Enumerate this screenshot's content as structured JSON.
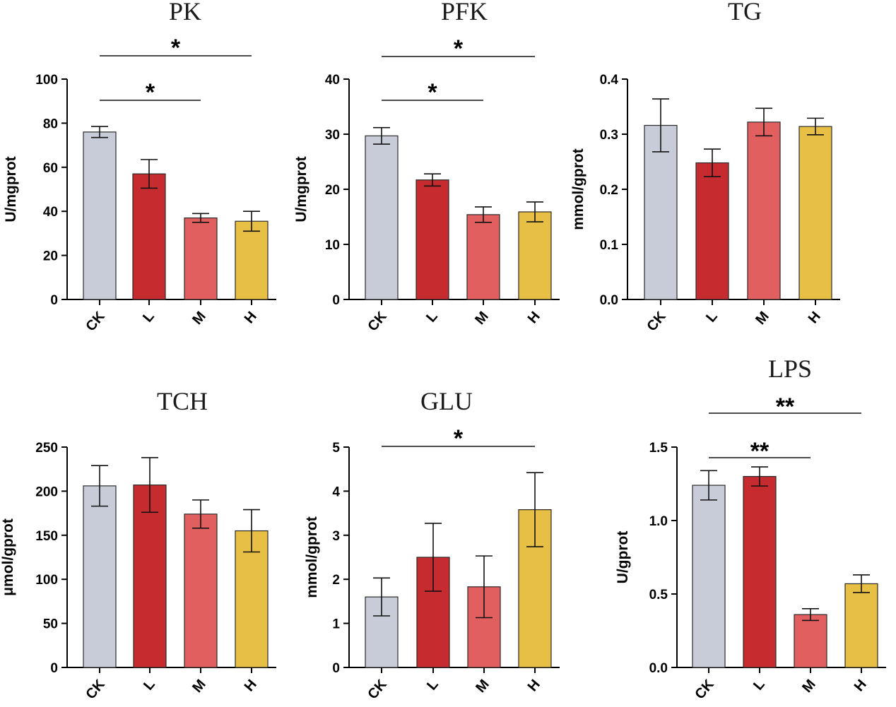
{
  "chart_data": [
    {
      "type": "bar",
      "title": "PK",
      "ylabel": "U/mgprot",
      "categories": [
        "CK",
        "L",
        "M",
        "H"
      ],
      "values": [
        76,
        57,
        37,
        35.5
      ],
      "errors": [
        2.5,
        6.5,
        2,
        4.5
      ],
      "ylim": [
        0,
        100
      ],
      "yticks": [
        0,
        20,
        40,
        60,
        80,
        100
      ],
      "tick_labels": [
        "0",
        "20",
        "40",
        "60",
        "80",
        "100"
      ],
      "significance": [
        {
          "from": "CK",
          "to": "M",
          "label": "*"
        },
        {
          "from": "CK",
          "to": "H",
          "label": "*"
        }
      ]
    },
    {
      "type": "bar",
      "title": "PFK",
      "ylabel": "U/mgprot",
      "categories": [
        "CK",
        "L",
        "M",
        "H"
      ],
      "values": [
        29.7,
        21.7,
        15.4,
        15.9
      ],
      "errors": [
        1.5,
        1.1,
        1.4,
        1.8
      ],
      "ylim": [
        0,
        40
      ],
      "yticks": [
        0,
        10,
        20,
        30,
        40
      ],
      "tick_labels": [
        "0",
        "10",
        "20",
        "30",
        "40"
      ],
      "significance": [
        {
          "from": "CK",
          "to": "M",
          "label": "*"
        },
        {
          "from": "CK",
          "to": "H",
          "label": "*"
        }
      ]
    },
    {
      "type": "bar",
      "title": "TG",
      "ylabel": "mmol/gprot",
      "categories": [
        "CK",
        "L",
        "M",
        "H"
      ],
      "values": [
        0.316,
        0.248,
        0.322,
        0.314
      ],
      "errors": [
        0.048,
        0.025,
        0.025,
        0.015
      ],
      "ylim": [
        0,
        0.4
      ],
      "yticks": [
        0,
        0.1,
        0.2,
        0.3,
        0.4
      ],
      "tick_labels": [
        "0.0",
        "0.1",
        "0.2",
        "0.3",
        "0.4"
      ],
      "significance": []
    },
    {
      "type": "bar",
      "title": "TCH",
      "ylabel": "μmol/gprot",
      "categories": [
        "CK",
        "L",
        "M",
        "H"
      ],
      "values": [
        206,
        207,
        174,
        155
      ],
      "errors": [
        23,
        31,
        16,
        24
      ],
      "ylim": [
        0,
        250
      ],
      "yticks": [
        0,
        50,
        100,
        150,
        200,
        250
      ],
      "tick_labels": [
        "0",
        "50",
        "100",
        "150",
        "200",
        "250"
      ],
      "significance": []
    },
    {
      "type": "bar",
      "title": "GLU",
      "ylabel": "mmol/gprot",
      "categories": [
        "CK",
        "L",
        "M",
        "H"
      ],
      "values": [
        1.6,
        2.5,
        1.83,
        3.58
      ],
      "errors": [
        0.43,
        0.77,
        0.7,
        0.84
      ],
      "ylim": [
        0,
        5
      ],
      "yticks": [
        0,
        1,
        2,
        3,
        4,
        5
      ],
      "tick_labels": [
        "0",
        "1",
        "2",
        "3",
        "4",
        "5"
      ],
      "significance": [
        {
          "from": "CK",
          "to": "H",
          "label": "*"
        }
      ]
    },
    {
      "type": "bar",
      "title": "LPS",
      "ylabel": "U/gprot",
      "categories": [
        "CK",
        "L",
        "M",
        "H"
      ],
      "values": [
        1.24,
        1.3,
        0.36,
        0.57
      ],
      "errors": [
        0.1,
        0.065,
        0.04,
        0.06
      ],
      "ylim": [
        0,
        1.5
      ],
      "yticks": [
        0,
        0.5,
        1.0,
        1.5
      ],
      "tick_labels": [
        "0.0",
        "0.5",
        "1.0",
        "1.5"
      ],
      "significance": [
        {
          "from": "CK",
          "to": "M",
          "label": "**"
        },
        {
          "from": "CK",
          "to": "H",
          "label": "**"
        }
      ]
    }
  ],
  "colors": {
    "CK": "#c8ccd8",
    "L": "#c62c2f",
    "M": "#e25f5f",
    "H": "#e7bf44",
    "outline": "#2a2a2a",
    "axis": "#000000"
  }
}
